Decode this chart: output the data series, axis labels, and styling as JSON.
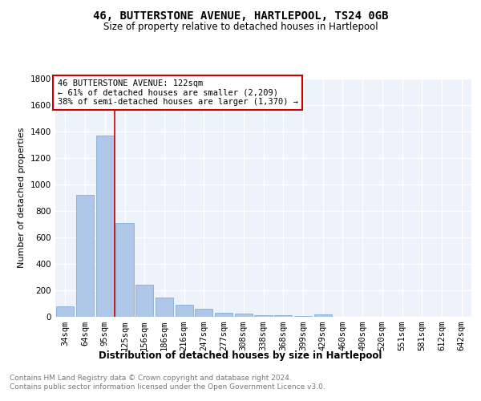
{
  "title": "46, BUTTERSTONE AVENUE, HARTLEPOOL, TS24 0GB",
  "subtitle": "Size of property relative to detached houses in Hartlepool",
  "xlabel": "Distribution of detached houses by size in Hartlepool",
  "ylabel": "Number of detached properties",
  "categories": [
    "34sqm",
    "64sqm",
    "95sqm",
    "125sqm",
    "156sqm",
    "186sqm",
    "216sqm",
    "247sqm",
    "277sqm",
    "308sqm",
    "338sqm",
    "368sqm",
    "399sqm",
    "429sqm",
    "460sqm",
    "490sqm",
    "520sqm",
    "551sqm",
    "581sqm",
    "612sqm",
    "642sqm"
  ],
  "values": [
    80,
    920,
    1370,
    710,
    245,
    148,
    88,
    58,
    30,
    25,
    15,
    10,
    5,
    20,
    2,
    2,
    0,
    0,
    0,
    0,
    0
  ],
  "bar_color": "#aec6e8",
  "bar_edge_color": "#6fa8d6",
  "vline_x_index": 2,
  "vline_color": "#cc0000",
  "annotation_lines": [
    "46 BUTTERSTONE AVENUE: 122sqm",
    "← 61% of detached houses are smaller (2,209)",
    "38% of semi-detached houses are larger (1,370) →"
  ],
  "annotation_box_color": "#ffffff",
  "annotation_box_edge": "#cc0000",
  "ylim": [
    0,
    1800
  ],
  "yticks": [
    0,
    200,
    400,
    600,
    800,
    1000,
    1200,
    1400,
    1600,
    1800
  ],
  "footer": "Contains HM Land Registry data © Crown copyright and database right 2024.\nContains public sector information licensed under the Open Government Licence v3.0.",
  "bg_color": "#eef2fa",
  "grid_color": "#ffffff",
  "title_fontsize": 10,
  "subtitle_fontsize": 8.5,
  "axis_label_fontsize": 8,
  "tick_fontsize": 7.5,
  "annotation_fontsize": 7.5,
  "footer_fontsize": 6.5
}
